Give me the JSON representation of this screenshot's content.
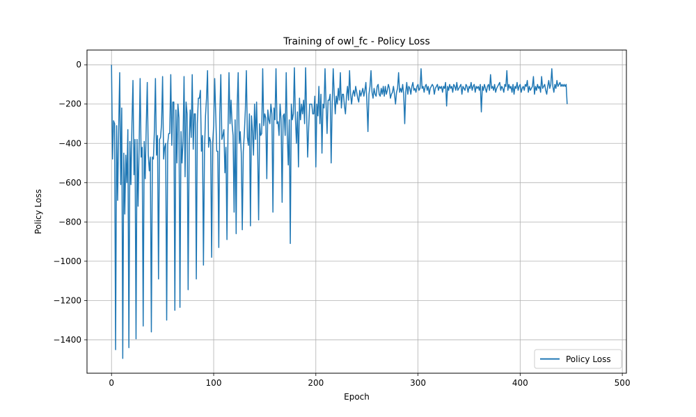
{
  "chart_data": {
    "type": "line",
    "title": "Training of owl_fc - Policy Loss",
    "xlabel": "Epoch",
    "ylabel": "Policy Loss",
    "xlim": [
      -24,
      504
    ],
    "ylim": [
      -1570,
      75
    ],
    "x_ticks": [
      0,
      100,
      200,
      300,
      400,
      500
    ],
    "y_ticks": [
      0,
      -200,
      -400,
      -600,
      -800,
      -1000,
      -1200,
      -1400
    ],
    "grid": true,
    "legend_position": "lower-right",
    "series": [
      {
        "name": "Policy Loss",
        "color": "#1f77b4",
        "x_start": 0,
        "x_step": 1,
        "values": [
          0,
          -480,
          -285,
          -300,
          -1450,
          -310,
          -690,
          -330,
          -40,
          -610,
          -220,
          -1495,
          -450,
          -760,
          -460,
          -600,
          -330,
          -1440,
          -390,
          -610,
          -300,
          -80,
          -560,
          -380,
          -1395,
          -380,
          -720,
          -420,
          -70,
          -470,
          -420,
          -1330,
          -390,
          -580,
          -310,
          -90,
          -460,
          -540,
          -470,
          -1360,
          -470,
          -480,
          -330,
          -70,
          -460,
          -360,
          -1090,
          -380,
          -370,
          -300,
          -60,
          -480,
          -420,
          -400,
          -1300,
          -400,
          -350,
          -350,
          -50,
          -410,
          -190,
          -190,
          -1250,
          -230,
          -500,
          -200,
          -270,
          -1235,
          -340,
          -500,
          -390,
          -60,
          -570,
          -190,
          -250,
          -1145,
          -410,
          -230,
          -370,
          -50,
          -430,
          -250,
          -250,
          -1090,
          -300,
          -170,
          -170,
          -130,
          -440,
          -360,
          -1020,
          -440,
          -260,
          -170,
          -30,
          -420,
          -370,
          -390,
          -980,
          -400,
          -310,
          -70,
          -250,
          -440,
          -440,
          -930,
          -250,
          -50,
          -380,
          -360,
          -330,
          -550,
          -420,
          -890,
          -350,
          -40,
          -300,
          -180,
          -300,
          -360,
          -750,
          -280,
          -860,
          -210,
          -40,
          -400,
          -340,
          -450,
          -840,
          -440,
          -350,
          -230,
          -30,
          -370,
          -410,
          -250,
          -820,
          -260,
          -340,
          -460,
          -200,
          -380,
          -190,
          -410,
          -790,
          -300,
          -360,
          -350,
          -20,
          -310,
          -250,
          -270,
          -580,
          -230,
          -280,
          -300,
          -200,
          -250,
          -750,
          -220,
          -280,
          -20,
          -300,
          -290,
          -360,
          -200,
          -280,
          -700,
          -260,
          -250,
          -360,
          -40,
          -350,
          -510,
          -280,
          -910,
          -200,
          -280,
          -250,
          -15,
          -270,
          -400,
          -240,
          -520,
          -170,
          -280,
          -200,
          -250,
          -180,
          -300,
          -15,
          -250,
          -470,
          -320,
          -200,
          -200,
          -200,
          -250,
          -250,
          -160,
          -520,
          -200,
          -260,
          -110,
          -300,
          -150,
          -450,
          -200,
          -220,
          -20,
          -200,
          -350,
          -180,
          -180,
          -150,
          -500,
          -200,
          -20,
          -150,
          -250,
          -160,
          -200,
          -120,
          -180,
          -40,
          -220,
          -150,
          -150,
          -210,
          -250,
          -160,
          -110,
          -180,
          -30,
          -150,
          -200,
          -150,
          -130,
          -160,
          -110,
          -140,
          -170,
          -190,
          -130,
          -160,
          -140,
          -120,
          -160,
          -130,
          -90,
          -190,
          -340,
          -150,
          -110,
          -30,
          -140,
          -170,
          -120,
          -150,
          -160,
          -110,
          -100,
          -150,
          -160,
          -120,
          -150,
          -110,
          -160,
          -110,
          -150,
          -130,
          -100,
          -120,
          -170,
          -150,
          -140,
          -110,
          -150,
          -200,
          -140,
          -120,
          -40,
          -140,
          -120,
          -140,
          -100,
          -150,
          -300,
          -140,
          -90,
          -150,
          -110,
          -120,
          -150,
          -110,
          -90,
          -130,
          -120,
          -140,
          -110,
          -100,
          -130,
          -120,
          -20,
          -120,
          -110,
          -140,
          -110,
          -100,
          -130,
          -110,
          -150,
          -120,
          -110,
          -100,
          -110,
          -150,
          -120,
          -110,
          -100,
          -130,
          -110,
          -120,
          -110,
          -140,
          -110,
          -120,
          -90,
          -210,
          -110,
          -130,
          -100,
          -120,
          -110,
          -140,
          -100,
          -110,
          -130,
          -90,
          -130,
          -120,
          -110,
          -100,
          -150,
          -110,
          -120,
          -130,
          -100,
          -110,
          -140,
          -110,
          -120,
          -90,
          -130,
          -110,
          -100,
          -140,
          -110,
          -120,
          -110,
          -130,
          -100,
          -240,
          -110,
          -130,
          -100,
          -120,
          -140,
          -110,
          -100,
          -130,
          -50,
          -120,
          -110,
          -130,
          -100,
          -140,
          -120,
          -110,
          -100,
          -90,
          -130,
          -110,
          -120,
          -140,
          -100,
          -110,
          -30,
          -130,
          -100,
          -120,
          -110,
          -140,
          -100,
          -150,
          -110,
          -120,
          -90,
          -130,
          -110,
          -100,
          -140,
          -120,
          -110,
          -130,
          -100,
          -110,
          -80,
          -140,
          -110,
          -130,
          -120,
          -110,
          -60,
          -150,
          -110,
          -130,
          -100,
          -120,
          -110,
          -140,
          -60,
          -120,
          -110,
          -100,
          -130,
          -150,
          -110,
          -80,
          -120,
          -100,
          -20,
          -110,
          -140,
          -100,
          -120,
          -80,
          -110,
          -100,
          -90,
          -110,
          -100,
          -110,
          -100,
          -110,
          -100,
          -200
        ]
      }
    ]
  }
}
